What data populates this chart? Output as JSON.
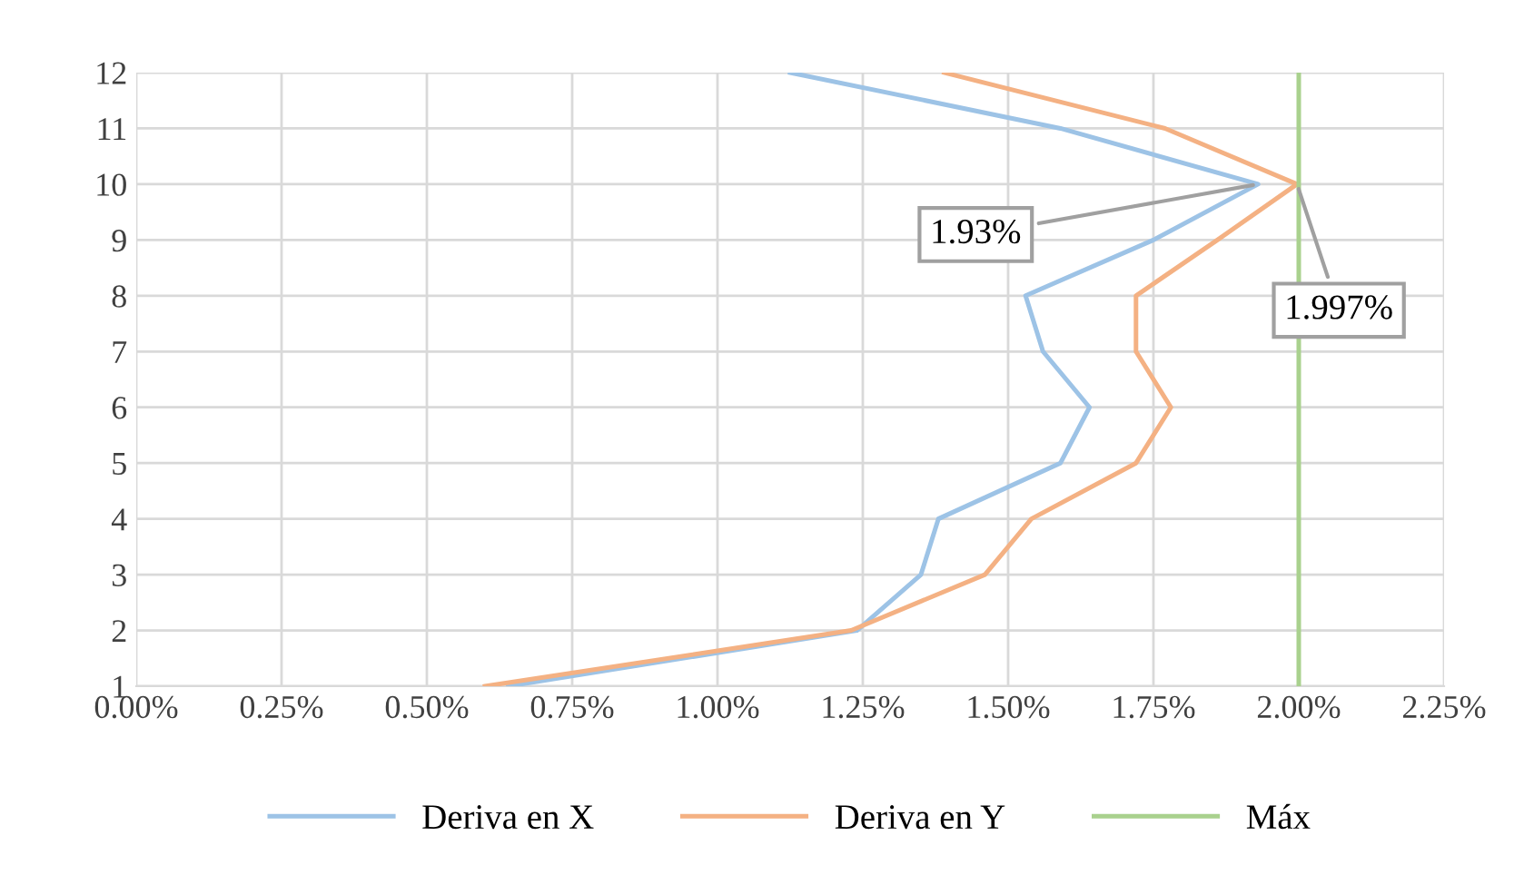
{
  "chart_data": {
    "type": "line",
    "series": [
      {
        "name": "Deriva en X",
        "color": "#9dc3e6",
        "x": [
          0.64,
          1.24,
          1.35,
          1.38,
          1.59,
          1.64,
          1.56,
          1.53,
          1.75,
          1.93,
          1.59,
          1.125
        ],
        "values": [
          1,
          2,
          3,
          4,
          5,
          6,
          7,
          8,
          9,
          10,
          11,
          12
        ]
      },
      {
        "name": "Deriva en Y",
        "color": "#f4b183",
        "x": [
          0.6,
          1.23,
          1.46,
          1.54,
          1.72,
          1.78,
          1.72,
          1.72,
          1.86,
          1.997,
          1.77,
          1.39
        ],
        "values": [
          1,
          2,
          3,
          4,
          5,
          6,
          7,
          8,
          9,
          10,
          11,
          12
        ]
      },
      {
        "name": "Máx",
        "color": "#a9d18e",
        "x": [
          2.0,
          2.0
        ],
        "values": [
          1,
          12
        ]
      }
    ],
    "annotations": [
      {
        "text": "1.93%",
        "x": 1.93,
        "y": 10
      },
      {
        "text": "1.997%",
        "x": 1.997,
        "y": 10
      }
    ],
    "xlim": [
      0,
      2.25
    ],
    "xticks": [
      {
        "value": 0,
        "label": "0.00%"
      },
      {
        "value": 0.25,
        "label": "0.25%"
      },
      {
        "value": 0.5,
        "label": "0.50%"
      },
      {
        "value": 0.75,
        "label": "0.75%"
      },
      {
        "value": 1.0,
        "label": "1.00%"
      },
      {
        "value": 1.25,
        "label": "1.25%"
      },
      {
        "value": 1.5,
        "label": "1.50%"
      },
      {
        "value": 1.75,
        "label": "1.75%"
      },
      {
        "value": 2.0,
        "label": "2.00%"
      },
      {
        "value": 2.25,
        "label": "2.25%"
      }
    ],
    "ylim": [
      1,
      12
    ],
    "yticks": [
      1,
      2,
      3,
      4,
      5,
      6,
      7,
      8,
      9,
      10,
      11,
      12
    ],
    "grid": true,
    "legend": "bottom",
    "marker": "none",
    "line_style": "solid"
  }
}
